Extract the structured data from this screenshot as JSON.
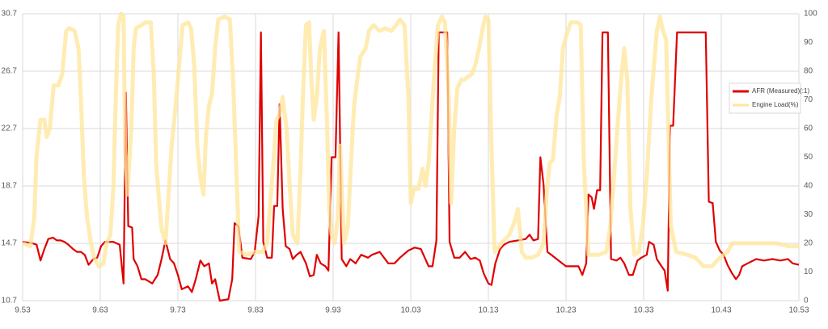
{
  "chart_data": {
    "type": "line",
    "xlim": [
      9.53,
      10.53
    ],
    "xticks": [
      9.53,
      9.63,
      9.73,
      9.83,
      9.93,
      10.03,
      10.13,
      10.23,
      10.33,
      10.43,
      10.53
    ],
    "ylim": [
      10.7,
      30.7
    ],
    "yticks": [
      10.7,
      14.7,
      18.7,
      22.7,
      26.7,
      30.7
    ],
    "y2lim": [
      0,
      100
    ],
    "y2ticks": [
      0,
      10,
      20,
      30,
      40,
      50,
      60,
      70,
      80,
      90,
      100
    ],
    "grid": true,
    "legend": "right",
    "series": [
      {
        "name": "AFR (Measured)(:1)",
        "color": "#e00000",
        "x": [
          9.53,
          9.543,
          9.548,
          9.553,
          9.558,
          9.563,
          9.569,
          9.574,
          9.579,
          9.584,
          9.589,
          9.595,
          9.6,
          9.605,
          9.61,
          9.615,
          9.621,
          9.626,
          9.631,
          9.636,
          9.647,
          9.655,
          9.66,
          9.663,
          9.666,
          9.671,
          9.673,
          9.678,
          9.683,
          9.688,
          9.697,
          9.704,
          9.709,
          9.714,
          9.72,
          9.725,
          9.73,
          9.735,
          9.743,
          9.748,
          9.753,
          9.759,
          9.764,
          9.77,
          9.774,
          9.778,
          9.784,
          9.795,
          9.8,
          9.803,
          9.808,
          9.813,
          9.824,
          9.829,
          9.834,
          9.837,
          9.84,
          9.845,
          9.851,
          9.854,
          9.858,
          9.861,
          9.865,
          9.869,
          9.874,
          9.878,
          9.883,
          9.888,
          9.895,
          9.9,
          9.905,
          9.909,
          9.914,
          9.92,
          9.924,
          9.928,
          9.933,
          9.937,
          9.941,
          9.947,
          9.952,
          9.959,
          9.966,
          9.975,
          9.98,
          9.99,
          10.001,
          10.009,
          10.016,
          10.027,
          10.035,
          10.043,
          10.048,
          10.053,
          10.058,
          10.063,
          10.066,
          10.077,
          10.08,
          10.086,
          10.093,
          10.1,
          10.107,
          10.113,
          10.119,
          10.124,
          10.13,
          10.134,
          10.139,
          10.145,
          10.15,
          10.157,
          10.168,
          10.178,
          10.183,
          10.188,
          10.194,
          10.197,
          10.201,
          10.206,
          10.211,
          10.218,
          10.225,
          10.23,
          10.235,
          10.246,
          10.251,
          10.256,
          10.259,
          10.263,
          10.266,
          10.27,
          10.274,
          10.277,
          10.284,
          10.288,
          10.295,
          10.3,
          10.305,
          10.311,
          10.316,
          10.322,
          10.327,
          10.334,
          10.337,
          10.343,
          10.347,
          10.353,
          10.357,
          10.361,
          10.364,
          10.368,
          10.373,
          10.41,
          10.414,
          10.419,
          10.423,
          10.428,
          10.433,
          10.438,
          10.444,
          10.449,
          10.453,
          10.457,
          10.464,
          10.475,
          10.485,
          10.496,
          10.506,
          10.516,
          10.522,
          10.53
        ],
        "values": [
          14.8,
          14.7,
          14.6,
          13.5,
          14.3,
          15.0,
          15.1,
          14.9,
          14.9,
          14.8,
          14.6,
          14.3,
          14.1,
          14.1,
          13.9,
          13.2,
          13.6,
          13.7,
          14.5,
          14.8,
          14.8,
          14.6,
          11.9,
          25.2,
          15.9,
          15.8,
          13.6,
          13.1,
          12.2,
          12.2,
          11.9,
          12.5,
          13.6,
          14.9,
          13.6,
          13.3,
          12.5,
          11.5,
          11.7,
          11.3,
          12.2,
          13.5,
          13.1,
          13.3,
          11.9,
          12.2,
          10.7,
          10.8,
          12.2,
          16.1,
          15.9,
          13.7,
          13.6,
          14.1,
          16.6,
          29.4,
          14.8,
          13.7,
          13.7,
          17.3,
          17.3,
          24.4,
          17.1,
          14.5,
          14.3,
          13.6,
          13.9,
          14.1,
          13.3,
          12.4,
          12.5,
          13.9,
          13.3,
          13.1,
          12.8,
          20.7,
          20.7,
          29.4,
          13.6,
          13.1,
          13.6,
          13.3,
          13.9,
          13.7,
          13.9,
          14.1,
          13.3,
          13.3,
          13.7,
          14.2,
          14.4,
          14.3,
          13.7,
          13.1,
          13.1,
          14.9,
          29.4,
          29.4,
          14.8,
          13.7,
          13.7,
          14.1,
          13.6,
          13.7,
          13.5,
          12.6,
          11.9,
          11.8,
          13.3,
          14.3,
          14.6,
          14.8,
          14.9,
          15.0,
          15.3,
          14.9,
          15.0,
          20.7,
          18.8,
          14.1,
          13.9,
          13.6,
          13.3,
          13.1,
          13.1,
          13.1,
          12.5,
          13.3,
          18.1,
          17.9,
          17.1,
          18.4,
          18.4,
          29.4,
          29.4,
          13.6,
          13.5,
          13.7,
          13.3,
          12.5,
          12.5,
          13.5,
          13.7,
          13.9,
          14.8,
          14.6,
          13.6,
          13.1,
          12.8,
          11.4,
          22.9,
          22.9,
          29.4,
          29.4,
          17.6,
          17.5,
          14.8,
          14.2,
          13.9,
          13.2,
          12.6,
          12.2,
          12.5,
          13.1,
          13.3,
          13.6,
          13.5,
          13.6,
          13.5,
          13.6,
          13.3,
          13.2
        ]
      },
      {
        "name": "Engine Load(%)",
        "color": "#ffe699",
        "axis": "y2",
        "x": [
          9.53,
          9.54,
          9.545,
          9.548,
          9.553,
          9.558,
          9.561,
          9.565,
          9.57,
          9.576,
          9.581,
          9.586,
          9.59,
          9.597,
          9.602,
          9.605,
          9.609,
          9.613,
          9.618,
          9.622,
          9.628,
          9.634,
          9.638,
          9.643,
          9.647,
          9.65,
          9.653,
          9.657,
          9.66,
          9.662,
          9.665,
          9.67,
          9.673,
          9.676,
          9.683,
          9.688,
          9.695,
          9.699,
          9.702,
          9.706,
          9.709,
          9.714,
          9.718,
          9.722,
          9.726,
          9.73,
          9.736,
          9.743,
          9.747,
          9.751,
          9.755,
          9.759,
          9.763,
          9.766,
          9.77,
          9.774,
          9.778,
          9.782,
          9.79,
          9.797,
          9.801,
          9.805,
          9.809,
          9.819,
          9.829,
          9.839,
          9.845,
          9.849,
          9.853,
          9.857,
          9.861,
          9.865,
          9.87,
          9.874,
          9.878,
          9.884,
          9.888,
          9.891,
          9.895,
          9.899,
          9.902,
          9.905,
          9.909,
          9.913,
          9.918,
          9.922,
          9.925,
          9.928,
          9.932,
          9.936,
          9.939,
          9.944,
          9.949,
          9.953,
          9.957,
          9.961,
          9.965,
          9.972,
          9.976,
          9.982,
          9.99,
          9.997,
          10.005,
          10.011,
          10.016,
          10.022,
          10.027,
          10.03,
          10.034,
          10.04,
          10.045,
          10.049,
          10.053,
          10.057,
          10.061,
          10.065,
          10.07,
          10.074,
          10.079,
          10.082,
          10.086,
          10.09,
          10.095,
          10.099,
          10.103,
          10.109,
          10.113,
          10.118,
          10.122,
          10.126,
          10.13,
          10.134,
          10.138,
          10.147,
          10.157,
          10.163,
          10.168,
          10.173,
          10.178,
          10.186,
          10.194,
          10.201,
          10.205,
          10.209,
          10.213,
          10.218,
          10.222,
          10.226,
          10.23,
          10.236,
          10.245,
          10.249,
          10.253,
          10.259,
          10.272,
          10.282,
          10.287,
          10.293,
          10.297,
          10.301,
          10.305,
          10.309,
          10.313,
          10.318,
          10.324,
          10.329,
          10.334,
          10.34,
          10.347,
          10.351,
          10.355,
          10.359,
          10.365,
          10.372,
          10.386,
          10.397,
          10.407,
          10.418,
          10.428,
          10.438,
          10.444,
          10.459,
          10.48,
          10.501,
          10.516,
          10.53
        ],
        "values": [
          20,
          19,
          29,
          51,
          63,
          63,
          57,
          60,
          75,
          75,
          79,
          94,
          95,
          94,
          88,
          71,
          43,
          29,
          20,
          15,
          12,
          13,
          20,
          23,
          40,
          71,
          96,
          100,
          99,
          54,
          37,
          60,
          88,
          95,
          96,
          97,
          97,
          79,
          48,
          34,
          25,
          20,
          37,
          54,
          65,
          77,
          96,
          97,
          95,
          82,
          54,
          43,
          37,
          57,
          68,
          72,
          88,
          98,
          99,
          98,
          77,
          48,
          17,
          16,
          17,
          17,
          20,
          34,
          48,
          63,
          65,
          71,
          60,
          40,
          23,
          20,
          46,
          71,
          96,
          97,
          77,
          63,
          71,
          88,
          94,
          63,
          32,
          23,
          20,
          29,
          54,
          20,
          26,
          48,
          68,
          77,
          85,
          88,
          94,
          96,
          94,
          95,
          94,
          96,
          98,
          96,
          71,
          34,
          39,
          39,
          46,
          40,
          48,
          65,
          82,
          96,
          99,
          97,
          71,
          34,
          60,
          74,
          77,
          77,
          78,
          79,
          82,
          88,
          94,
          99,
          98,
          54,
          17,
          20,
          23,
          27,
          32,
          17,
          15,
          15,
          16,
          20,
          37,
          48,
          49,
          65,
          71,
          88,
          92,
          97,
          97,
          96,
          48,
          16,
          16,
          17,
          26,
          48,
          63,
          77,
          88,
          77,
          32,
          16,
          17,
          26,
          43,
          71,
          94,
          99,
          94,
          91,
          26,
          17,
          16,
          15,
          12,
          12,
          15,
          17,
          20,
          20,
          20,
          20,
          19,
          19
        ]
      }
    ]
  }
}
